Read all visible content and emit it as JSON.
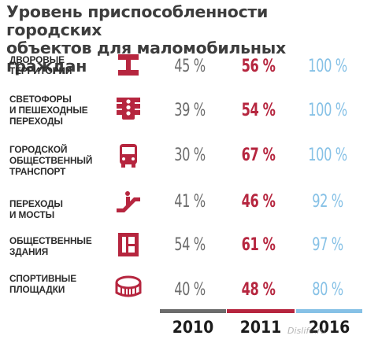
{
  "title_lines": [
    "Уровень приспособленности городских",
    "объектов для маломобильных граждан"
  ],
  "colors": {
    "y2010": "#6c6c6c",
    "y2011": "#b6263f",
    "y2016": "#86c1e6",
    "icon": "#b6263f"
  },
  "rows": [
    {
      "label_lines": [
        "ДВОРОВЫЕ",
        "ТЕРРИТОРИИ"
      ],
      "icon": "courtyard-icon",
      "v2010": "45 %",
      "v2011": "56 %",
      "v2016": "100 %"
    },
    {
      "label_lines": [
        "СВЕТОФОРЫ",
        "И ПЕШЕХОДНЫЕ",
        "ПЕРЕХОДЫ"
      ],
      "icon": "traffic-light-icon",
      "v2010": "39 %",
      "v2011": "54 %",
      "v2016": "100 %"
    },
    {
      "label_lines": [
        "ГОРОДСКОЙ",
        "ОБЩЕСТВЕННЫЙ",
        "ТРАНСПОРТ"
      ],
      "icon": "bus-icon",
      "v2010": "30 %",
      "v2011": "67 %",
      "v2016": "100 %"
    },
    {
      "label_lines": [
        "ПЕРЕХОДЫ",
        "И МОСТЫ"
      ],
      "icon": "escalator-icon",
      "v2010": "41 %",
      "v2011": "46 %",
      "v2016": "92 %"
    },
    {
      "label_lines": [
        "ОБЩЕСТВЕННЫЕ",
        "ЗДАНИЯ"
      ],
      "icon": "building-icon",
      "v2010": "54 %",
      "v2011": "61 %",
      "v2016": "97 %"
    },
    {
      "label_lines": [
        "СПОРТИВНЫЕ",
        "ПЛОЩАДКИ"
      ],
      "icon": "stadium-icon",
      "v2010": "40 %",
      "v2011": "48 %",
      "v2016": "80 %"
    }
  ],
  "years": [
    "2010",
    "2011",
    "2016"
  ],
  "watermark": "Dislife.ru",
  "chart_data": {
    "type": "table",
    "title": "Уровень приспособленности городских объектов для маломобильных граждан",
    "categories": [
      "ДВОРОВЫЕ ТЕРРИТОРИИ",
      "СВЕТОФОРЫ И ПЕШЕХОДНЫЕ ПЕРЕХОДЫ",
      "ГОРОДСКОЙ ОБЩЕСТВЕННЫЙ ТРАНСПОРТ",
      "ПЕРЕХОДЫ И МОСТЫ",
      "ОБЩЕСТВЕННЫЕ ЗДАНИЯ",
      "СПОРТИВНЫЕ ПЛОЩАДКИ"
    ],
    "series": [
      {
        "name": "2010",
        "values": [
          45,
          39,
          30,
          41,
          54,
          40
        ]
      },
      {
        "name": "2011",
        "values": [
          56,
          54,
          67,
          46,
          61,
          48
        ]
      },
      {
        "name": "2016",
        "values": [
          100,
          100,
          100,
          92,
          97,
          80
        ]
      }
    ],
    "unit": "%"
  }
}
